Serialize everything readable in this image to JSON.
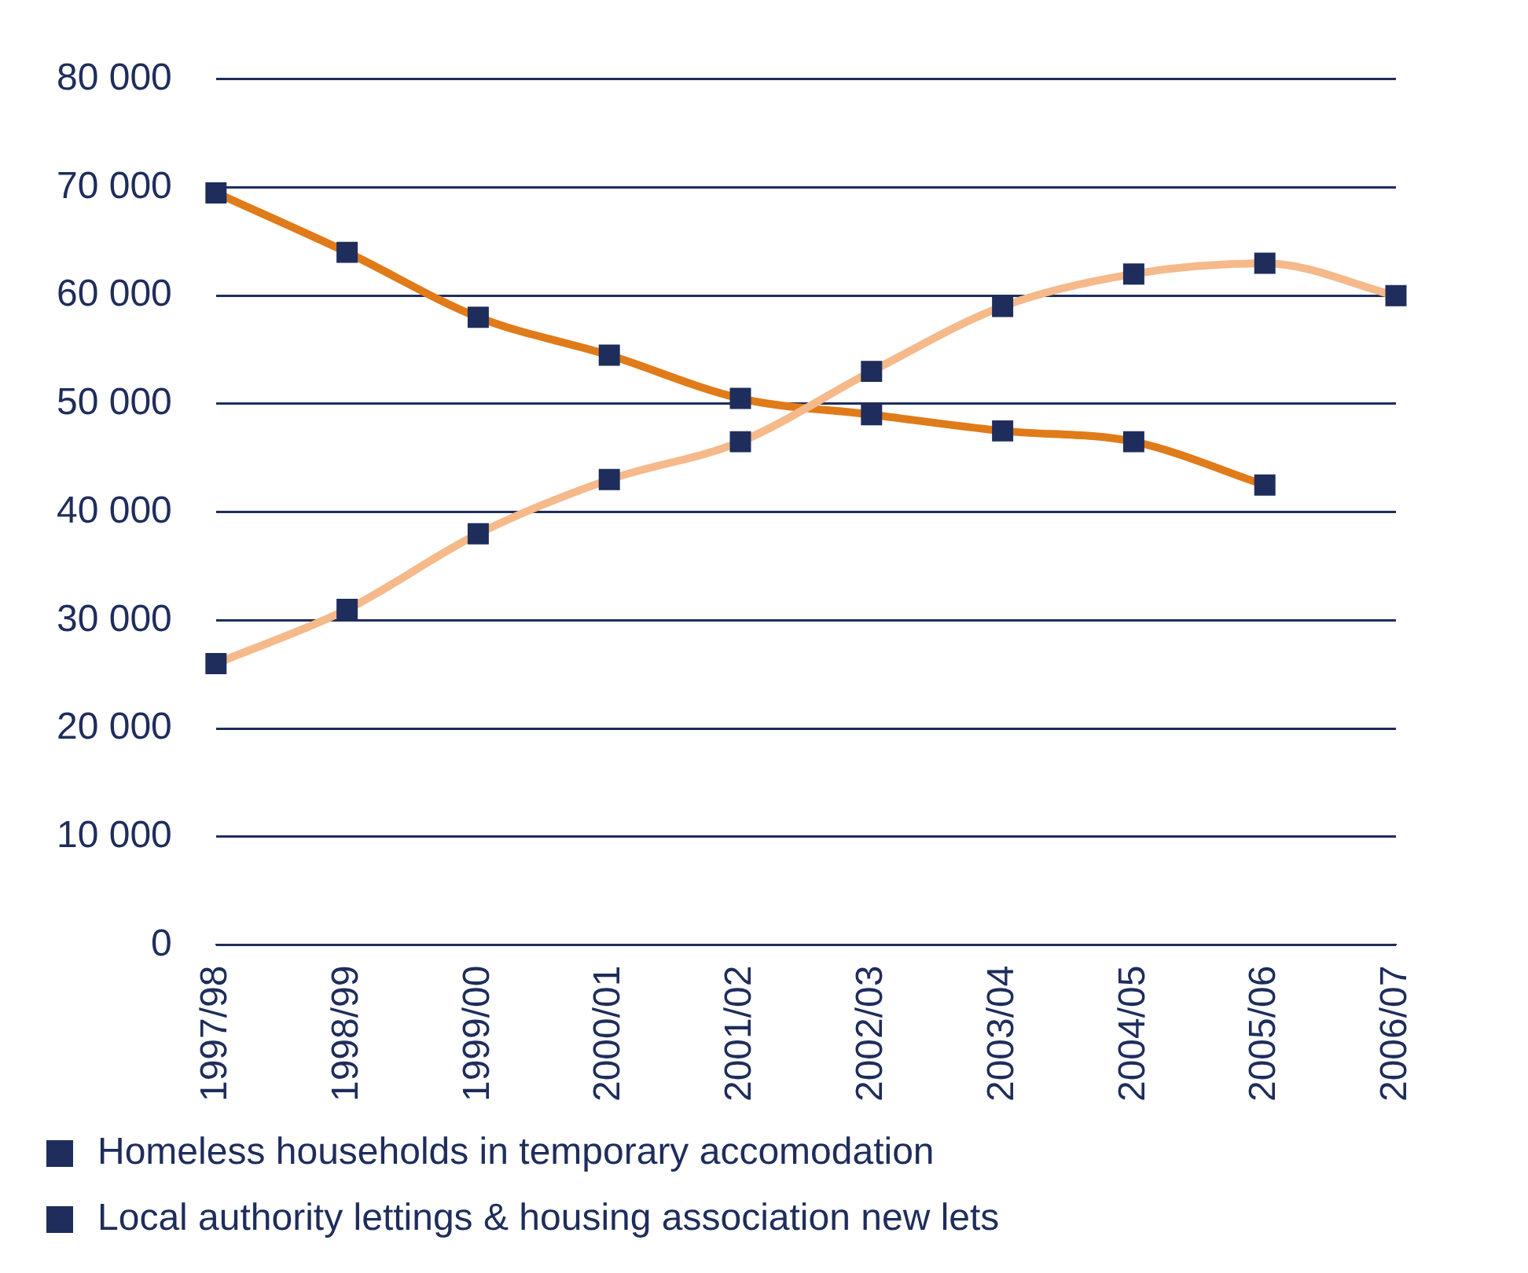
{
  "chart_data": {
    "type": "line",
    "categories": [
      "1997/98",
      "1998/99",
      "1999/00",
      "2000/01",
      "2001/02",
      "2002/03",
      "2003/04",
      "2004/05",
      "2005/06",
      "2006/07"
    ],
    "series": [
      {
        "name": "Homeless households in temporary accomodation",
        "color": "#f5b98a",
        "values": [
          26000,
          31000,
          38000,
          43000,
          46500,
          53000,
          59000,
          62000,
          63000,
          60000
        ]
      },
      {
        "name": "Local authority lettings & housing association new lets",
        "color": "#e07b1a",
        "values": [
          69500,
          64000,
          58000,
          54500,
          50500,
          49000,
          47500,
          46500,
          42500,
          null
        ]
      }
    ],
    "ylim": [
      0,
      80000
    ],
    "yticks": [
      {
        "value": 0,
        "label": "0"
      },
      {
        "value": 10000,
        "label": "10 000"
      },
      {
        "value": 20000,
        "label": "20 000"
      },
      {
        "value": 30000,
        "label": "30 000"
      },
      {
        "value": 40000,
        "label": "40 000"
      },
      {
        "value": 50000,
        "label": "50 000"
      },
      {
        "value": 60000,
        "label": "60 000"
      },
      {
        "value": 70000,
        "label": "70 000"
      },
      {
        "value": 80000,
        "label": "80 000"
      }
    ],
    "grid": "y",
    "legend": "bottom",
    "marker": "square",
    "line_style": "solid"
  }
}
